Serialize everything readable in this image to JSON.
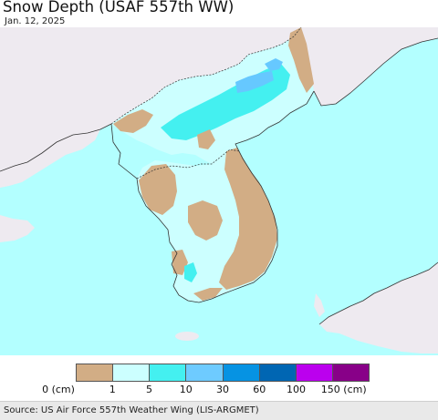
{
  "header": {
    "title": "Snow Depth (USAF 557th WW)",
    "date": "Jan. 12, 2025"
  },
  "map": {
    "ocean_color": "#b3ffff",
    "foreign_land_color": "#eeeaf0",
    "bare_ground_color": "#d2ad85",
    "snow_light_color": "#ccffff",
    "snow_mid_color": "#44f0f0",
    "snow_heavy_color": "#66c8ff",
    "border_color": "#333333"
  },
  "legend": {
    "colors": [
      "#d2ad85",
      "#ccffff",
      "#44f0f0",
      "#6ecbff",
      "#0693e3",
      "#0066b3",
      "#bb00ee",
      "#880088"
    ],
    "labels": [
      {
        "text": "0 (cm)"
      },
      {
        "text": "1"
      },
      {
        "text": "5"
      },
      {
        "text": "10"
      },
      {
        "text": "30"
      },
      {
        "text": "60"
      },
      {
        "text": "100"
      },
      {
        "text": "150 (cm)"
      }
    ]
  },
  "footer": {
    "source": "Source: US Air Force 557th Weather Wing (LIS-ARGMET)"
  }
}
